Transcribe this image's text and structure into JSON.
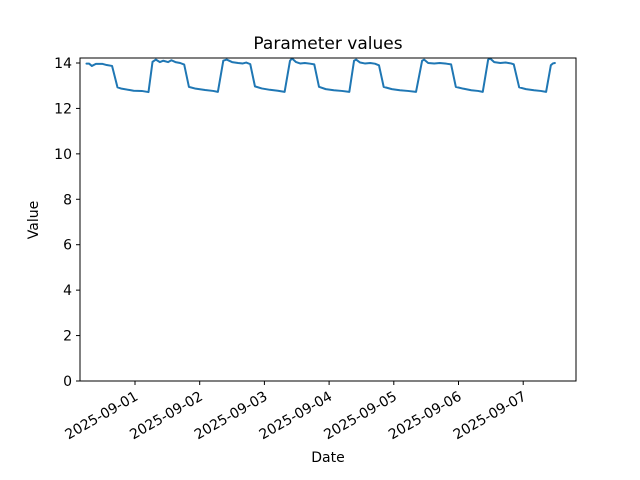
{
  "figure": {
    "background_color": "#ffffff",
    "axes_edge_color": "#000000"
  },
  "chart_data": {
    "type": "line",
    "title": "Parameter values",
    "xlabel": "Date",
    "ylabel": "Value",
    "grid": false,
    "legend": null,
    "line_color": "#1f77b4",
    "line_width": 2,
    "ylim": [
      0,
      14.22
    ],
    "yticks": [
      0,
      2,
      4,
      6,
      8,
      10,
      12,
      14
    ],
    "xticks": [
      "2025-09-01",
      "2025-09-02",
      "2025-09-03",
      "2025-09-04",
      "2025-09-05",
      "2025-09-06",
      "2025-09-07"
    ],
    "xtick_rotation_deg": 30,
    "xlim_days_from_2025_09_01": [
      -0.85,
      6.816
    ],
    "series": [
      {
        "name": "Parameter values",
        "points": [
          [
            "2025-08-31T06:00",
            13.97
          ],
          [
            "2025-08-31T07:00",
            13.97
          ],
          [
            "2025-08-31T08:00",
            13.87
          ],
          [
            "2025-08-31T09:30",
            13.96
          ],
          [
            "2025-08-31T12:00",
            13.96
          ],
          [
            "2025-08-31T13:30",
            13.91
          ],
          [
            "2025-08-31T15:30",
            13.87
          ],
          [
            "2025-08-31T17:30",
            12.93
          ],
          [
            "2025-08-31T19:00",
            12.87
          ],
          [
            "2025-08-31T22:00",
            12.81
          ],
          [
            "2025-08-31T23:30",
            12.78
          ],
          [
            "2025-09-01T02:30",
            12.77
          ],
          [
            "2025-09-01T05:00",
            12.72
          ],
          [
            "2025-09-01T06:30",
            14.05
          ],
          [
            "2025-09-01T07:45",
            14.15
          ],
          [
            "2025-09-01T09:15",
            14.04
          ],
          [
            "2025-09-01T10:30",
            14.1
          ],
          [
            "2025-09-01T12:15",
            14.04
          ],
          [
            "2025-09-01T13:30",
            14.12
          ],
          [
            "2025-09-01T15:00",
            14.04
          ],
          [
            "2025-09-01T16:45",
            14.0
          ],
          [
            "2025-09-01T18:15",
            13.93
          ],
          [
            "2025-09-01T20:00",
            12.95
          ],
          [
            "2025-09-01T22:30",
            12.87
          ],
          [
            "2025-09-02T02:00",
            12.81
          ],
          [
            "2025-09-02T05:00",
            12.77
          ],
          [
            "2025-09-02T06:45",
            12.73
          ],
          [
            "2025-09-02T08:45",
            14.1
          ],
          [
            "2025-09-02T10:00",
            14.15
          ],
          [
            "2025-09-02T12:00",
            14.04
          ],
          [
            "2025-09-02T14:15",
            14.0
          ],
          [
            "2025-09-02T16:00",
            13.98
          ],
          [
            "2025-09-02T17:15",
            14.02
          ],
          [
            "2025-09-02T18:45",
            13.95
          ],
          [
            "2025-09-02T20:30",
            12.97
          ],
          [
            "2025-09-02T23:00",
            12.88
          ],
          [
            "2025-09-03T02:00",
            12.82
          ],
          [
            "2025-09-03T05:00",
            12.78
          ],
          [
            "2025-09-03T07:30",
            12.73
          ],
          [
            "2025-09-03T09:30",
            14.1
          ],
          [
            "2025-09-03T10:15",
            14.2
          ],
          [
            "2025-09-03T11:45",
            14.04
          ],
          [
            "2025-09-03T13:15",
            13.98
          ],
          [
            "2025-09-03T15:00",
            14.0
          ],
          [
            "2025-09-03T17:00",
            13.97
          ],
          [
            "2025-09-03T18:30",
            13.94
          ],
          [
            "2025-09-03T20:15",
            12.95
          ],
          [
            "2025-09-03T22:45",
            12.85
          ],
          [
            "2025-09-04T01:45",
            12.8
          ],
          [
            "2025-09-04T04:45",
            12.77
          ],
          [
            "2025-09-04T07:30",
            12.73
          ],
          [
            "2025-09-04T09:15",
            14.1
          ],
          [
            "2025-09-04T10:00",
            14.15
          ],
          [
            "2025-09-04T11:30",
            14.02
          ],
          [
            "2025-09-04T13:15",
            13.98
          ],
          [
            "2025-09-04T15:15",
            14.0
          ],
          [
            "2025-09-04T17:00",
            13.97
          ],
          [
            "2025-09-04T18:30",
            13.9
          ],
          [
            "2025-09-04T20:15",
            12.95
          ],
          [
            "2025-09-04T23:15",
            12.85
          ],
          [
            "2025-09-05T02:15",
            12.8
          ],
          [
            "2025-09-05T05:15",
            12.77
          ],
          [
            "2025-09-05T08:15",
            12.73
          ],
          [
            "2025-09-05T10:30",
            14.1
          ],
          [
            "2025-09-05T11:15",
            14.15
          ],
          [
            "2025-09-05T12:45",
            14.0
          ],
          [
            "2025-09-05T15:00",
            13.98
          ],
          [
            "2025-09-05T17:00",
            14.0
          ],
          [
            "2025-09-05T19:30",
            13.97
          ],
          [
            "2025-09-05T21:15",
            13.94
          ],
          [
            "2025-09-05T23:00",
            12.95
          ],
          [
            "2025-09-06T01:45",
            12.87
          ],
          [
            "2025-09-06T04:45",
            12.8
          ],
          [
            "2025-09-06T07:15",
            12.77
          ],
          [
            "2025-09-06T09:00",
            12.73
          ],
          [
            "2025-09-06T11:00",
            14.15
          ],
          [
            "2025-09-06T11:45",
            14.2
          ],
          [
            "2025-09-06T13:15",
            14.04
          ],
          [
            "2025-09-06T15:30",
            14.0
          ],
          [
            "2025-09-06T17:30",
            14.02
          ],
          [
            "2025-09-06T19:30",
            13.98
          ],
          [
            "2025-09-06T20:30",
            13.94
          ],
          [
            "2025-09-06T22:30",
            12.93
          ],
          [
            "2025-09-07T01:00",
            12.85
          ],
          [
            "2025-09-07T04:00",
            12.8
          ],
          [
            "2025-09-07T06:30",
            12.77
          ],
          [
            "2025-09-07T08:30",
            12.73
          ],
          [
            "2025-09-07T10:15",
            13.9
          ],
          [
            "2025-09-07T11:00",
            13.98
          ],
          [
            "2025-09-07T11:45",
            14.0
          ]
        ]
      }
    ]
  }
}
